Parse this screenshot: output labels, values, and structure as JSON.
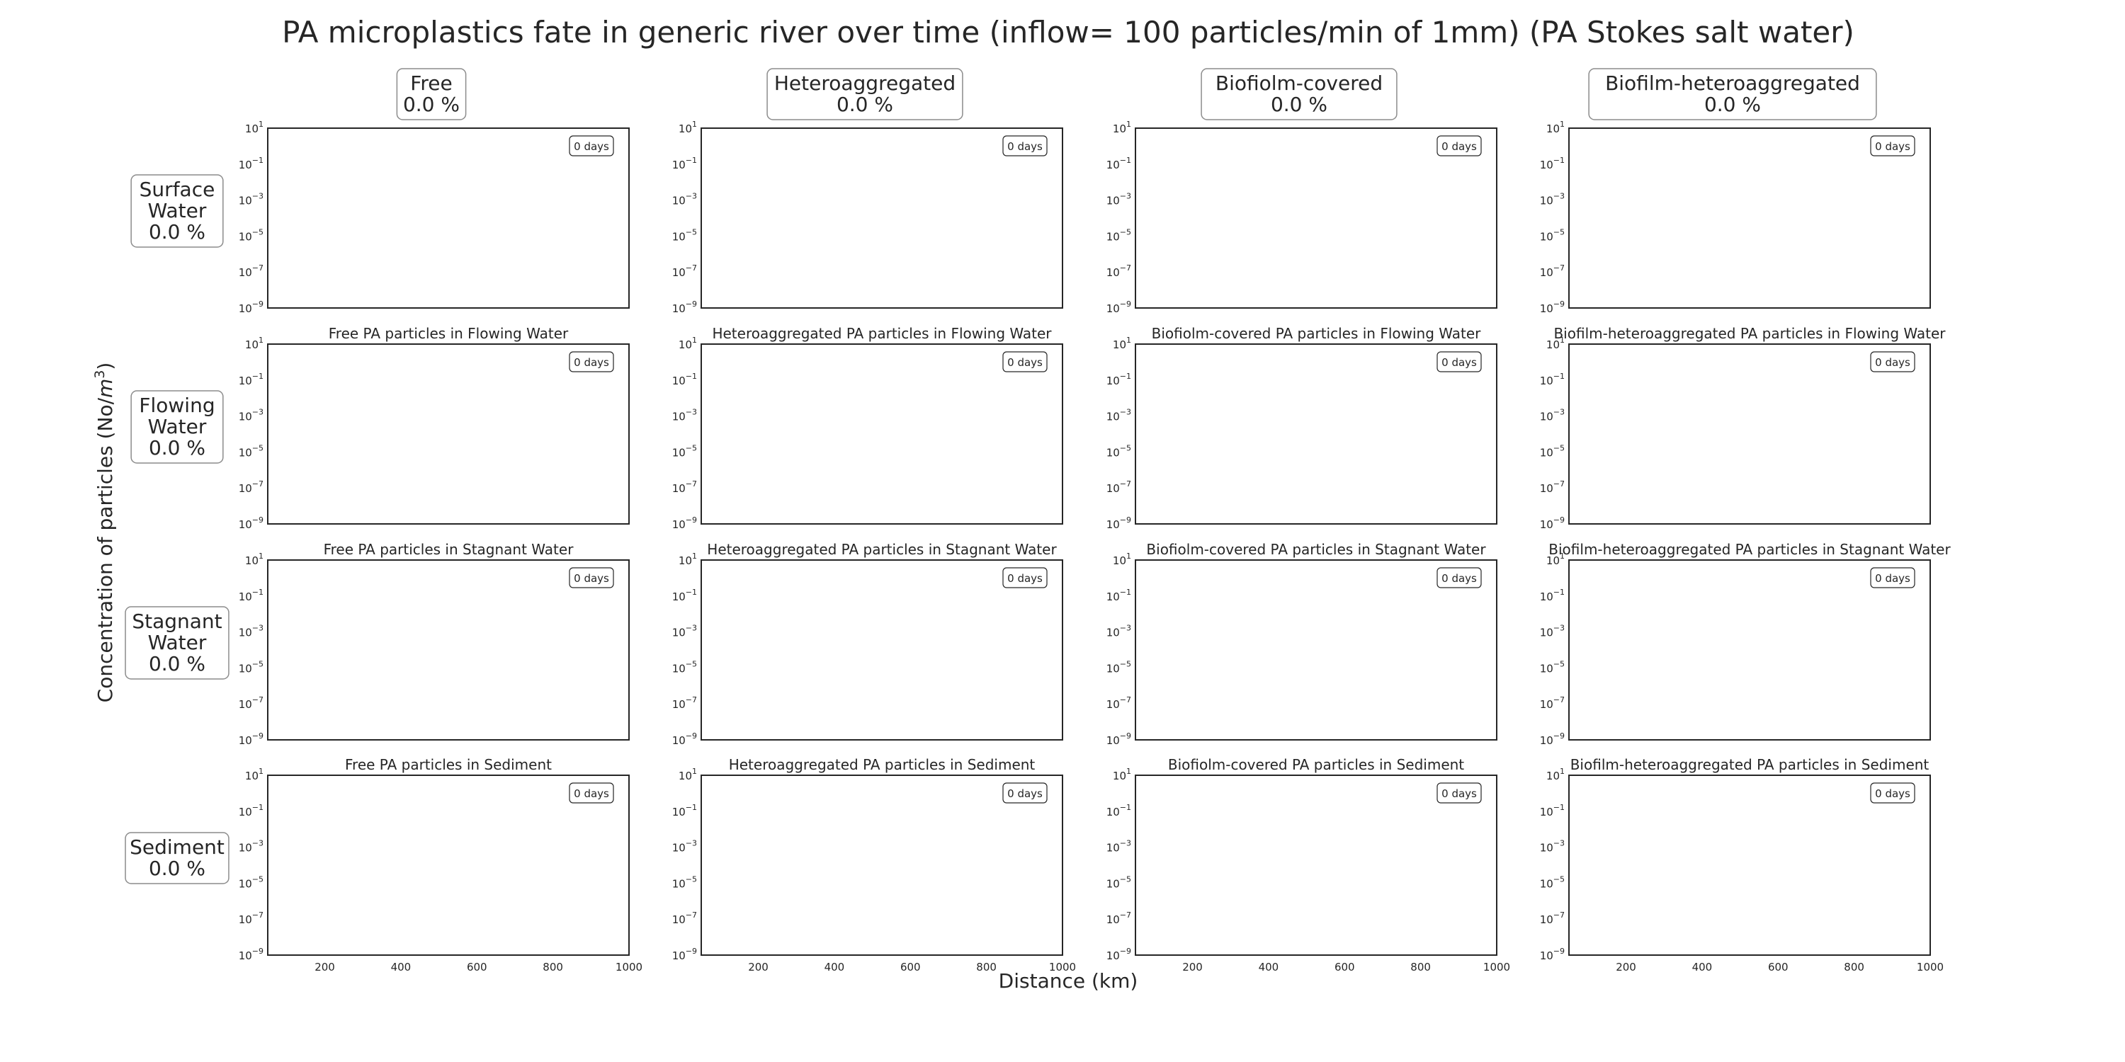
{
  "figure": {
    "title": "PA microplastics fate in generic river over time (inflow= 100 particles/min of 1mm) (PA Stokes salt water)",
    "ylabel": "Concentration of particles (No/m$^3$)",
    "ylabel_pre": "Concentration of particles (No/",
    "ylabel_unit": "m",
    "ylabel_exp": "3",
    "ylabel_post": ")",
    "xlabel": "Distance (km)"
  },
  "columns": [
    {
      "name": "Free",
      "percent": "0.0 %"
    },
    {
      "name": "Heteroaggregated",
      "percent": "0.0 %"
    },
    {
      "name": "Biofiolm-covered",
      "percent": "0.0 %"
    },
    {
      "name": "Biofilm-heteroaggregated",
      "percent": "0.0 %"
    }
  ],
  "rows": [
    {
      "name_lines": [
        "Surface",
        "Water"
      ],
      "percent": "0.0 %"
    },
    {
      "name_lines": [
        "Flowing",
        "Water"
      ],
      "percent": "0.0 %"
    },
    {
      "name_lines": [
        "Stagnant",
        "Water"
      ],
      "percent": "0.0 %"
    },
    {
      "name_lines": [
        "Sediment"
      ],
      "percent": "0.0 %"
    }
  ],
  "subplot_titles": [
    [
      "",
      "",
      "",
      ""
    ],
    [
      "Free PA particles in Flowing Water",
      "Heteroaggregated PA particles in Flowing Water",
      "Biofiolm-covered PA particles in Flowing Water",
      "Biofilm-heteroaggregated PA particles in Flowing Water"
    ],
    [
      "Free PA particles in Stagnant Water",
      "Heteroaggregated PA particles in Stagnant Water",
      "Biofiolm-covered PA particles in Stagnant Water",
      "Biofilm-heteroaggregated PA particles in Stagnant Water"
    ],
    [
      "Free PA particles in Sediment",
      "Heteroaggregated PA particles in Sediment",
      "Biofiolm-covered PA particles in Sediment",
      "Biofilm-heteroaggregated PA particles in Sediment"
    ]
  ],
  "time_label": "0 days",
  "chart_data": {
    "type": "line",
    "layout": "4x4 grid of subplots",
    "x": [],
    "series": [],
    "xlim": [
      50,
      1000
    ],
    "xticks": [
      200,
      400,
      600,
      800,
      1000
    ],
    "xlabel": "Distance (km)",
    "ylim": [
      1e-09,
      10
    ],
    "yscale": "log",
    "yticks": [
      {
        "base": "10",
        "exp": "1"
      },
      {
        "base": "10",
        "exp": "−1"
      },
      {
        "base": "10",
        "exp": "−3"
      },
      {
        "base": "10",
        "exp": "−5"
      },
      {
        "base": "10",
        "exp": "−7"
      },
      {
        "base": "10",
        "exp": "−9"
      }
    ],
    "ylabel": "Concentration of particles (No/m$^3$)",
    "grid": false
  },
  "colors": {
    "axes": "#262626",
    "box_border": "#8c8c8c",
    "background": "#ffffff"
  }
}
